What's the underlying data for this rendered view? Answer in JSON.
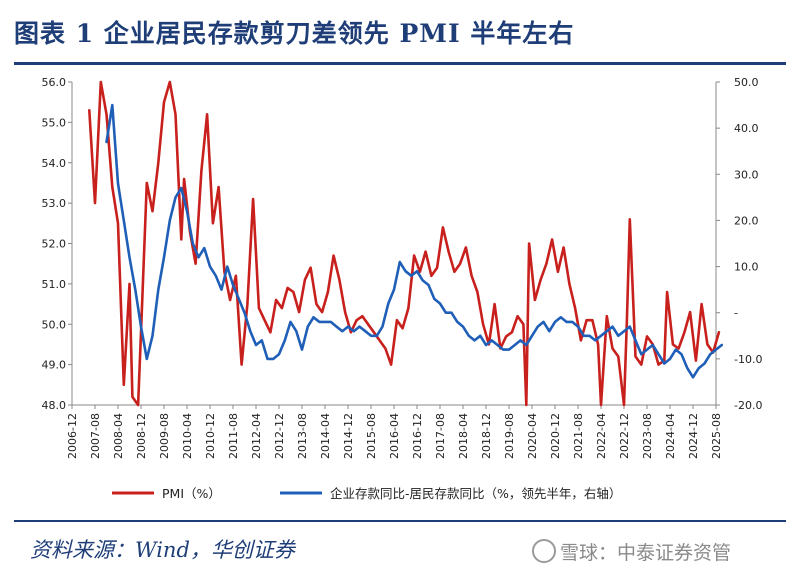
{
  "header": {
    "title": "图表 1   企业居民存款剪刀差领先 PMI 半年左右"
  },
  "footer": {
    "source": "资料来源：Wind，华创证券"
  },
  "watermark": {
    "text": "雪球：中泰证券资管"
  },
  "chart_data": {
    "type": "line",
    "x_ticks": [
      "2006-12",
      "2007-08",
      "2008-04",
      "2008-12",
      "2009-08",
      "2010-04",
      "2010-12",
      "2011-08",
      "2012-04",
      "2012-12",
      "2013-08",
      "2014-04",
      "2014-12",
      "2015-08",
      "2016-04",
      "2016-12",
      "2017-08",
      "2018-04",
      "2018-12",
      "2019-08",
      "2020-04",
      "2020-12",
      "2021-08",
      "2022-04",
      "2022-12",
      "2023-08",
      "2024-04",
      "2024-12",
      "2025-08"
    ],
    "y_left_ticks": [
      "48.0",
      "49.0",
      "50.0",
      "51.0",
      "52.0",
      "53.0",
      "54.0",
      "55.0",
      "56.0"
    ],
    "y_right_ticks": [
      "-20.0",
      "-10.0",
      "-",
      "10.0",
      "20.0",
      "30.0",
      "40.0",
      "50.0"
    ],
    "ylim_left": [
      48,
      56
    ],
    "ylim_right": [
      -20,
      50
    ],
    "grid": false,
    "legend_position": "bottom",
    "colors": {
      "pmi": "#c8201c",
      "spread": "#1f5fb8",
      "axis": "#888888"
    },
    "series": [
      {
        "name": "PMI（%）",
        "axis": "left",
        "points": [
          [
            "2007-06",
            55.3
          ],
          [
            "2007-08",
            53.0
          ],
          [
            "2007-10",
            56.0
          ],
          [
            "2007-12",
            55.2
          ],
          [
            "2008-02",
            53.4
          ],
          [
            "2008-04",
            52.5
          ],
          [
            "2008-06",
            48.5
          ],
          [
            "2008-08",
            51.0
          ],
          [
            "2008-09",
            48.2
          ],
          [
            "2008-11",
            48.0
          ],
          [
            "2008-12",
            49.8
          ],
          [
            "2009-02",
            53.5
          ],
          [
            "2009-04",
            52.8
          ],
          [
            "2009-06",
            54.0
          ],
          [
            "2009-08",
            55.5
          ],
          [
            "2009-10",
            56.0
          ],
          [
            "2009-12",
            55.2
          ],
          [
            "2010-02",
            52.1
          ],
          [
            "2010-03",
            53.6
          ],
          [
            "2010-05",
            52.3
          ],
          [
            "2010-07",
            51.5
          ],
          [
            "2010-09",
            53.8
          ],
          [
            "2010-11",
            55.2
          ],
          [
            "2011-01",
            52.5
          ],
          [
            "2011-03",
            53.4
          ],
          [
            "2011-05",
            51.3
          ],
          [
            "2011-07",
            50.6
          ],
          [
            "2011-09",
            51.2
          ],
          [
            "2011-11",
            49.0
          ],
          [
            "2012-01",
            50.5
          ],
          [
            "2012-03",
            53.1
          ],
          [
            "2012-05",
            50.4
          ],
          [
            "2012-07",
            50.1
          ],
          [
            "2012-09",
            49.8
          ],
          [
            "2012-11",
            50.6
          ],
          [
            "2013-01",
            50.4
          ],
          [
            "2013-03",
            50.9
          ],
          [
            "2013-05",
            50.8
          ],
          [
            "2013-07",
            50.3
          ],
          [
            "2013-09",
            51.1
          ],
          [
            "2013-11",
            51.4
          ],
          [
            "2014-01",
            50.5
          ],
          [
            "2014-03",
            50.3
          ],
          [
            "2014-05",
            50.8
          ],
          [
            "2014-07",
            51.7
          ],
          [
            "2014-09",
            51.1
          ],
          [
            "2014-11",
            50.3
          ],
          [
            "2015-01",
            49.8
          ],
          [
            "2015-03",
            50.1
          ],
          [
            "2015-05",
            50.2
          ],
          [
            "2015-07",
            50.0
          ],
          [
            "2015-09",
            49.8
          ],
          [
            "2015-11",
            49.6
          ],
          [
            "2016-01",
            49.4
          ],
          [
            "2016-03",
            49.0
          ],
          [
            "2016-05",
            50.1
          ],
          [
            "2016-07",
            49.9
          ],
          [
            "2016-09",
            50.4
          ],
          [
            "2016-11",
            51.7
          ],
          [
            "2017-01",
            51.3
          ],
          [
            "2017-03",
            51.8
          ],
          [
            "2017-05",
            51.2
          ],
          [
            "2017-07",
            51.4
          ],
          [
            "2017-09",
            52.4
          ],
          [
            "2017-11",
            51.8
          ],
          [
            "2018-01",
            51.3
          ],
          [
            "2018-03",
            51.5
          ],
          [
            "2018-05",
            51.9
          ],
          [
            "2018-07",
            51.2
          ],
          [
            "2018-09",
            50.8
          ],
          [
            "2018-11",
            50.0
          ],
          [
            "2019-01",
            49.5
          ],
          [
            "2019-03",
            50.5
          ],
          [
            "2019-05",
            49.4
          ],
          [
            "2019-07",
            49.7
          ],
          [
            "2019-09",
            49.8
          ],
          [
            "2019-11",
            50.2
          ],
          [
            "2020-01",
            50.0
          ],
          [
            "2020-02",
            48.0
          ],
          [
            "2020-03",
            52.0
          ],
          [
            "2020-05",
            50.6
          ],
          [
            "2020-07",
            51.1
          ],
          [
            "2020-09",
            51.5
          ],
          [
            "2020-11",
            52.1
          ],
          [
            "2021-01",
            51.3
          ],
          [
            "2021-03",
            51.9
          ],
          [
            "2021-05",
            51.0
          ],
          [
            "2021-07",
            50.4
          ],
          [
            "2021-09",
            49.6
          ],
          [
            "2021-11",
            50.1
          ],
          [
            "2022-01",
            50.1
          ],
          [
            "2022-03",
            49.5
          ],
          [
            "2022-04",
            48.0
          ],
          [
            "2022-06",
            50.2
          ],
          [
            "2022-08",
            49.4
          ],
          [
            "2022-10",
            49.2
          ],
          [
            "2022-12",
            48.0
          ],
          [
            "2023-01",
            50.1
          ],
          [
            "2023-02",
            52.6
          ],
          [
            "2023-04",
            49.2
          ],
          [
            "2023-06",
            49.0
          ],
          [
            "2023-08",
            49.7
          ],
          [
            "2023-10",
            49.5
          ],
          [
            "2023-12",
            49.0
          ],
          [
            "2024-02",
            49.1
          ],
          [
            "2024-03",
            50.8
          ],
          [
            "2024-05",
            49.5
          ],
          [
            "2024-07",
            49.4
          ],
          [
            "2024-09",
            49.8
          ],
          [
            "2024-11",
            50.3
          ],
          [
            "2025-01",
            49.1
          ],
          [
            "2025-03",
            50.5
          ],
          [
            "2025-05",
            49.5
          ],
          [
            "2025-07",
            49.3
          ],
          [
            "2025-09",
            49.8
          ]
        ]
      },
      {
        "name": "企业存款同比-居民存款同比（%，领先半年，右轴）",
        "axis": "right",
        "points": [
          [
            "2007-12",
            37
          ],
          [
            "2008-02",
            45
          ],
          [
            "2008-04",
            28
          ],
          [
            "2008-06",
            20
          ],
          [
            "2008-08",
            12
          ],
          [
            "2008-10",
            5
          ],
          [
            "2008-12",
            -3
          ],
          [
            "2009-02",
            -10
          ],
          [
            "2009-04",
            -5
          ],
          [
            "2009-06",
            5
          ],
          [
            "2009-08",
            12
          ],
          [
            "2009-10",
            20
          ],
          [
            "2009-12",
            25
          ],
          [
            "2010-02",
            27
          ],
          [
            "2010-04",
            22
          ],
          [
            "2010-06",
            15
          ],
          [
            "2010-08",
            12
          ],
          [
            "2010-10",
            14
          ],
          [
            "2010-12",
            10
          ],
          [
            "2011-02",
            8
          ],
          [
            "2011-04",
            5
          ],
          [
            "2011-06",
            10
          ],
          [
            "2011-08",
            6
          ],
          [
            "2011-10",
            3
          ],
          [
            "2011-12",
            0
          ],
          [
            "2012-02",
            -4
          ],
          [
            "2012-04",
            -7
          ],
          [
            "2012-06",
            -6
          ],
          [
            "2012-08",
            -10
          ],
          [
            "2012-10",
            -10
          ],
          [
            "2012-12",
            -9
          ],
          [
            "2013-02",
            -6
          ],
          [
            "2013-04",
            -2
          ],
          [
            "2013-06",
            -4
          ],
          [
            "2013-08",
            -8
          ],
          [
            "2013-10",
            -3
          ],
          [
            "2013-12",
            -1
          ],
          [
            "2014-02",
            -2
          ],
          [
            "2014-04",
            -2
          ],
          [
            "2014-06",
            -2
          ],
          [
            "2014-08",
            -3
          ],
          [
            "2014-10",
            -4
          ],
          [
            "2014-12",
            -3
          ],
          [
            "2015-02",
            -4
          ],
          [
            "2015-04",
            -3
          ],
          [
            "2015-06",
            -4
          ],
          [
            "2015-08",
            -5
          ],
          [
            "2015-10",
            -5
          ],
          [
            "2015-12",
            -3
          ],
          [
            "2016-02",
            2
          ],
          [
            "2016-04",
            5
          ],
          [
            "2016-06",
            11
          ],
          [
            "2016-08",
            9
          ],
          [
            "2016-10",
            8
          ],
          [
            "2016-12",
            9
          ],
          [
            "2017-02",
            7
          ],
          [
            "2017-04",
            6
          ],
          [
            "2017-06",
            3
          ],
          [
            "2017-08",
            2
          ],
          [
            "2017-10",
            0
          ],
          [
            "2017-12",
            0
          ],
          [
            "2018-02",
            -2
          ],
          [
            "2018-04",
            -3
          ],
          [
            "2018-06",
            -5
          ],
          [
            "2018-08",
            -6
          ],
          [
            "2018-10",
            -5
          ],
          [
            "2018-12",
            -7
          ],
          [
            "2019-02",
            -6
          ],
          [
            "2019-04",
            -7
          ],
          [
            "2019-06",
            -8
          ],
          [
            "2019-08",
            -8
          ],
          [
            "2019-10",
            -7
          ],
          [
            "2019-12",
            -6
          ],
          [
            "2020-02",
            -7
          ],
          [
            "2020-04",
            -5
          ],
          [
            "2020-06",
            -3
          ],
          [
            "2020-08",
            -2
          ],
          [
            "2020-10",
            -4
          ],
          [
            "2020-12",
            -2
          ],
          [
            "2021-02",
            -1
          ],
          [
            "2021-04",
            -2
          ],
          [
            "2021-06",
            -2
          ],
          [
            "2021-08",
            -3
          ],
          [
            "2021-10",
            -5
          ],
          [
            "2021-12",
            -5
          ],
          [
            "2022-02",
            -6
          ],
          [
            "2022-04",
            -5
          ],
          [
            "2022-06",
            -4
          ],
          [
            "2022-08",
            -3
          ],
          [
            "2022-10",
            -5
          ],
          [
            "2022-12",
            -4
          ],
          [
            "2023-02",
            -3
          ],
          [
            "2023-04",
            -6
          ],
          [
            "2023-06",
            -9
          ],
          [
            "2023-08",
            -8
          ],
          [
            "2023-10",
            -7
          ],
          [
            "2023-12",
            -9
          ],
          [
            "2024-02",
            -11
          ],
          [
            "2024-04",
            -10
          ],
          [
            "2024-06",
            -8
          ],
          [
            "2024-08",
            -9
          ],
          [
            "2024-10",
            -12
          ],
          [
            "2024-12",
            -14
          ],
          [
            "2025-02",
            -12
          ],
          [
            "2025-04",
            -11
          ],
          [
            "2025-06",
            -9
          ],
          [
            "2025-08",
            -8
          ],
          [
            "2025-10",
            -7
          ]
        ]
      }
    ]
  }
}
